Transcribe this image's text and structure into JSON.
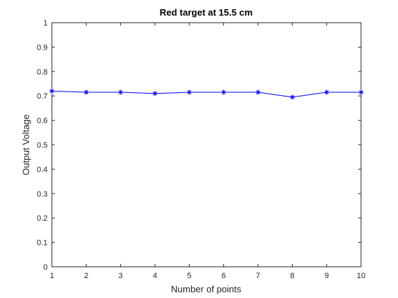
{
  "chart_data": {
    "type": "line",
    "title": "Red target at 15.5 cm",
    "xlabel": "Number of points",
    "ylabel": "Output Voltage",
    "xlim": [
      1,
      10
    ],
    "ylim": [
      0,
      1
    ],
    "xticks": [
      "1",
      "2",
      "3",
      "4",
      "5",
      "6",
      "7",
      "8",
      "9",
      "10"
    ],
    "yticks": [
      "0",
      "0.1",
      "0.2",
      "0.3",
      "0.4",
      "0.5",
      "0.6",
      "0.7",
      "0.8",
      "0.9",
      "1"
    ],
    "grid": false,
    "marker": "asterisk",
    "line_color": "#0000ff",
    "series": [
      {
        "x": [
          1,
          2,
          3,
          4,
          5,
          6,
          7,
          8,
          9,
          10
        ],
        "values": [
          0.72,
          0.715,
          0.715,
          0.71,
          0.715,
          0.715,
          0.715,
          0.695,
          0.715,
          0.715
        ]
      }
    ]
  }
}
